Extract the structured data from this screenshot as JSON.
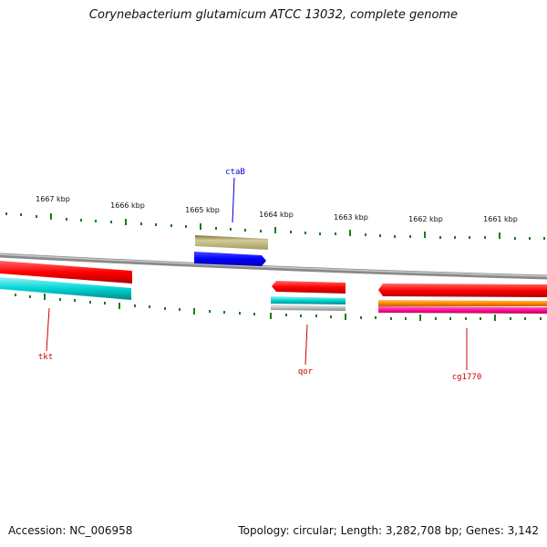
{
  "title": "Corynebacterium glutamicum ATCC 13032, complete genome",
  "footer": {
    "accession": "Accession: NC_006958",
    "summary": "Topology: circular; Length: 3,282,708 bp; Genes: 3,142"
  },
  "scale": {
    "unit": "kbp",
    "labels": [
      "1667 kbp",
      "1666 kbp",
      "1665 kbp",
      "1664 kbp",
      "1663 kbp",
      "1662 kbp",
      "1661 kbp"
    ]
  },
  "genes": [
    {
      "name": "tkt",
      "label_color": "#cc0000"
    },
    {
      "name": "ctaB",
      "label_color": "#0000cc"
    },
    {
      "name": "qor",
      "label_color": "#cc0000"
    },
    {
      "name": "cg1770",
      "label_color": "#cc0000"
    }
  ],
  "colors": {
    "backbone": "#8a8a8a",
    "tick": "#1a7a1a",
    "red": "#ff0000",
    "cyan": "#00d4d4",
    "olive": "#b0a870",
    "blue": "#0000ff",
    "silver": "#c0c0c0",
    "orange": "#ff8c00",
    "pink": "#ff1493"
  }
}
